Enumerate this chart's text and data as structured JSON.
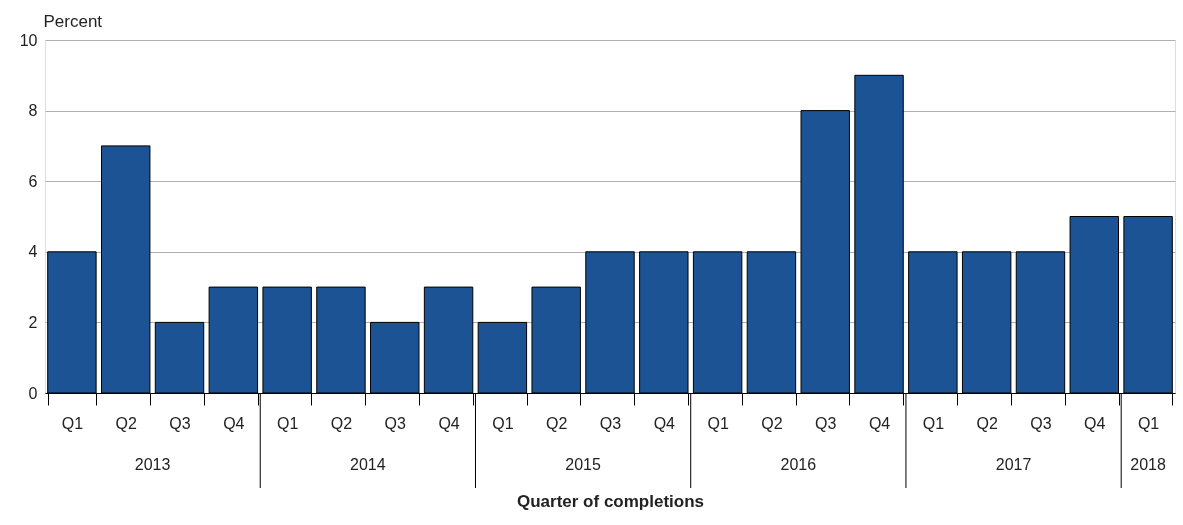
{
  "chart_data": {
    "type": "bar",
    "xlabel": "Quarter of completions",
    "ylabel": "Percent",
    "categories": [
      "Q1",
      "Q2",
      "Q3",
      "Q4",
      "Q1",
      "Q2",
      "Q3",
      "Q4",
      "Q1",
      "Q2",
      "Q3",
      "Q4",
      "Q1",
      "Q2",
      "Q3",
      "Q4",
      "Q1",
      "Q2",
      "Q3",
      "Q4",
      "Q1"
    ],
    "values": [
      4,
      7,
      2,
      3,
      3,
      3,
      2,
      3,
      2,
      3,
      4,
      4,
      4,
      4,
      8,
      9,
      4,
      4,
      4,
      5,
      5
    ],
    "color": "#1b5394",
    "ylim": [
      0,
      10
    ],
    "yticks": [
      0,
      2,
      4,
      6,
      8,
      10
    ],
    "grid": "y",
    "annotations": [
      "2013",
      "2014",
      "2015",
      "2016",
      "2017",
      "2018"
    ]
  }
}
